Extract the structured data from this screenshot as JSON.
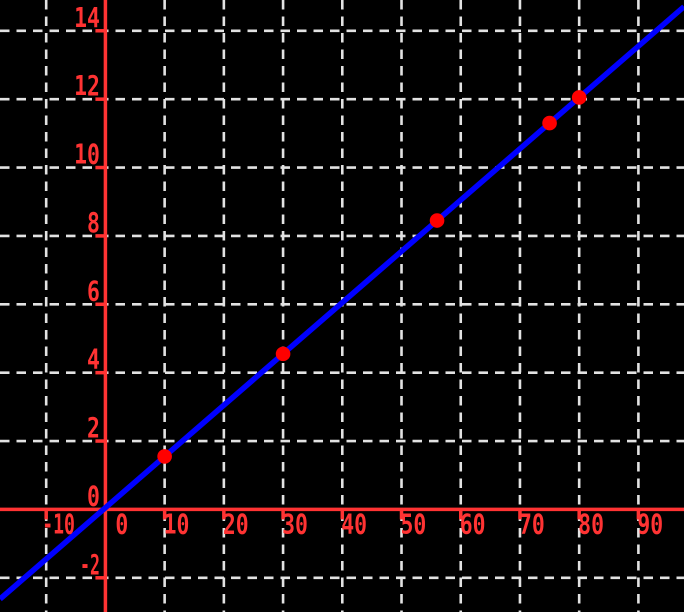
{
  "chart_data": {
    "type": "scatter",
    "title": "",
    "xlabel": "",
    "ylabel": "",
    "grid": "dashed",
    "legend": null,
    "x_ticks": [
      -10,
      0,
      10,
      20,
      30,
      40,
      50,
      60,
      70,
      80,
      90
    ],
    "y_ticks": [
      -2,
      0,
      2,
      4,
      6,
      8,
      10,
      12,
      14
    ],
    "xlim": [
      -17.8,
      97.7
    ],
    "ylim": [
      -3.0,
      14.9
    ],
    "points": [
      [
        10,
        1.55
      ],
      [
        30,
        4.55
      ],
      [
        56,
        8.45
      ],
      [
        75,
        11.3
      ],
      [
        80,
        12.05
      ]
    ],
    "fit_line": {
      "slope": 0.15,
      "intercept": 0.05
    },
    "colors": {
      "background": "#000000",
      "axis": "#ff3333",
      "tick_label": "#ff3333",
      "grid": "#e2e2e2",
      "line": "#0000ff",
      "point": "#ff0000"
    }
  }
}
